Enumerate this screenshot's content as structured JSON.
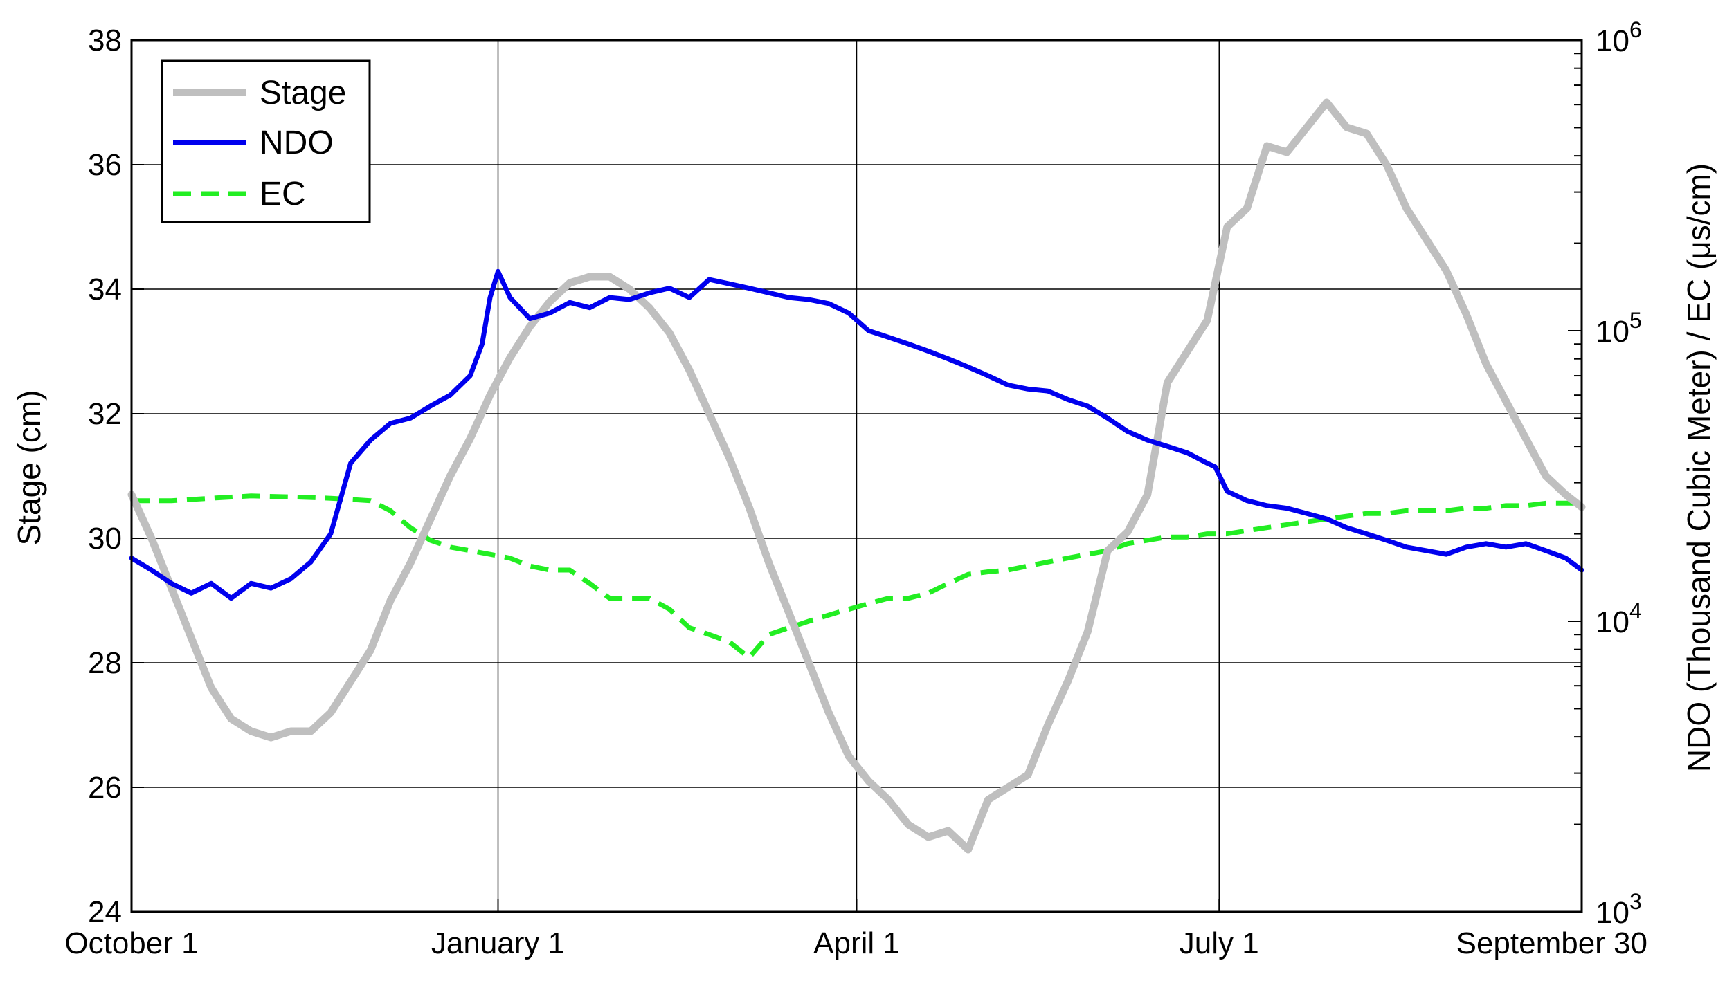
{
  "chart_data": {
    "type": "line",
    "ylabel": "Stage (cm)",
    "y2label": "NDO (Thousand Cubic Meter) / EC (μs/cm)",
    "x_ticks": [
      {
        "day": 0,
        "label": "October 1"
      },
      {
        "day": 92,
        "label": "January 1"
      },
      {
        "day": 182,
        "label": "April 1"
      },
      {
        "day": 273,
        "label": "July 1"
      },
      {
        "day": 364,
        "label": "September 30"
      }
    ],
    "xlim": [
      0,
      364
    ],
    "ylim": [
      24,
      38
    ],
    "y_ticks": [
      "24",
      "26",
      "28",
      "30",
      "32",
      "34",
      "36",
      "38"
    ],
    "y2lim": [
      1000,
      1000000
    ],
    "y2scale": "log",
    "y2_ticks": [
      {
        "value": 1000,
        "base": "10",
        "exp": "3"
      },
      {
        "value": 10000,
        "base": "10",
        "exp": "4"
      },
      {
        "value": 100000,
        "base": "10",
        "exp": "5"
      },
      {
        "value": 1000000,
        "base": "10",
        "exp": "6"
      }
    ],
    "grid": true,
    "legend_position": "top-left",
    "series": [
      {
        "name": "Stage",
        "axis": "left",
        "color": "#bfbfbf",
        "dash": "solid",
        "x": [
          0,
          5,
          10,
          15,
          20,
          25,
          30,
          35,
          40,
          45,
          50,
          55,
          60,
          65,
          70,
          75,
          80,
          85,
          90,
          95,
          100,
          105,
          110,
          115,
          120,
          125,
          130,
          135,
          140,
          145,
          150,
          155,
          160,
          165,
          170,
          175,
          180,
          185,
          190,
          195,
          200,
          205,
          210,
          215,
          220,
          225,
          230,
          235,
          240,
          245,
          250,
          255,
          260,
          265,
          270,
          275,
          280,
          285,
          290,
          295,
          300,
          305,
          310,
          315,
          320,
          325,
          330,
          335,
          340,
          345,
          350,
          355,
          360,
          364
        ],
        "y": [
          30.7,
          30.0,
          29.2,
          28.4,
          27.6,
          27.1,
          26.9,
          26.8,
          26.9,
          26.9,
          27.2,
          27.7,
          28.2,
          29.0,
          29.6,
          30.3,
          31.0,
          31.6,
          32.3,
          32.9,
          33.4,
          33.8,
          34.1,
          34.2,
          34.2,
          34.0,
          33.7,
          33.3,
          32.7,
          32.0,
          31.3,
          30.5,
          29.6,
          28.8,
          28.0,
          27.2,
          26.5,
          26.1,
          25.8,
          25.4,
          25.2,
          25.3,
          25.0,
          25.8,
          26.0,
          26.2,
          27.0,
          27.7,
          28.5,
          29.8,
          30.1,
          30.7,
          32.5,
          33.0,
          33.5,
          35.0,
          35.3,
          36.3,
          36.2,
          36.6,
          37.0,
          36.6,
          36.5,
          36.0,
          35.3,
          34.8,
          34.3,
          33.6,
          32.8,
          32.2,
          31.6,
          31.0,
          30.7,
          30.5
        ]
      },
      {
        "name": "NDO",
        "axis": "right",
        "color": "#0000ee",
        "dash": "solid",
        "x": [
          0,
          5,
          10,
          15,
          20,
          25,
          30,
          35,
          40,
          45,
          50,
          55,
          60,
          65,
          70,
          75,
          80,
          85,
          88,
          90,
          92,
          95,
          100,
          105,
          110,
          115,
          120,
          125,
          130,
          135,
          140,
          145,
          150,
          155,
          160,
          165,
          170,
          175,
          180,
          185,
          190,
          195,
          200,
          205,
          210,
          215,
          220,
          225,
          230,
          235,
          240,
          245,
          250,
          255,
          260,
          265,
          270,
          272,
          275,
          280,
          285,
          290,
          295,
          300,
          305,
          310,
          315,
          320,
          325,
          330,
          335,
          340,
          345,
          350,
          355,
          360,
          364
        ],
        "y": [
          16500,
          15000,
          13500,
          12500,
          13500,
          12000,
          13500,
          13000,
          14000,
          16000,
          20000,
          35000,
          42000,
          48000,
          50000,
          55000,
          60000,
          70000,
          90000,
          130000,
          160000,
          130000,
          110000,
          115000,
          125000,
          120000,
          130000,
          128000,
          135000,
          140000,
          130000,
          150000,
          145000,
          140000,
          135000,
          130000,
          128000,
          124000,
          115000,
          100000,
          95000,
          90000,
          85000,
          80000,
          75000,
          70000,
          65000,
          63000,
          62000,
          58000,
          55000,
          50000,
          45000,
          42000,
          40000,
          38000,
          35000,
          34000,
          28000,
          26000,
          25000,
          24500,
          23500,
          22500,
          21000,
          20000,
          19000,
          18000,
          17500,
          17000,
          18000,
          18500,
          18000,
          18500,
          17500,
          16500,
          15000
        ]
      },
      {
        "name": "EC",
        "axis": "right",
        "color": "#22ee22",
        "dash": "dashed",
        "x": [
          0,
          10,
          20,
          30,
          40,
          50,
          60,
          65,
          70,
          75,
          80,
          85,
          90,
          95,
          100,
          105,
          110,
          115,
          120,
          125,
          130,
          135,
          140,
          145,
          150,
          155,
          160,
          165,
          170,
          175,
          180,
          185,
          190,
          195,
          200,
          205,
          210,
          215,
          220,
          225,
          230,
          235,
          240,
          245,
          250,
          255,
          260,
          265,
          270,
          275,
          280,
          285,
          290,
          295,
          300,
          305,
          310,
          315,
          320,
          325,
          330,
          335,
          340,
          345,
          350,
          355,
          360,
          364
        ],
        "y": [
          26000,
          26000,
          26500,
          27000,
          26800,
          26500,
          26000,
          24000,
          21000,
          19000,
          18000,
          17500,
          17000,
          16500,
          15500,
          15000,
          15000,
          13500,
          12000,
          12000,
          12000,
          11000,
          9500,
          9000,
          8500,
          7500,
          9000,
          9500,
          10000,
          10500,
          11000,
          11500,
          12000,
          12000,
          12500,
          13500,
          14500,
          14800,
          15000,
          15500,
          16000,
          16500,
          17000,
          17500,
          18500,
          19000,
          19500,
          19500,
          20000,
          20000,
          20500,
          21000,
          21500,
          22000,
          22500,
          23000,
          23500,
          23500,
          24000,
          24000,
          24000,
          24500,
          24500,
          25000,
          25000,
          25500,
          25500,
          25500
        ]
      }
    ]
  }
}
